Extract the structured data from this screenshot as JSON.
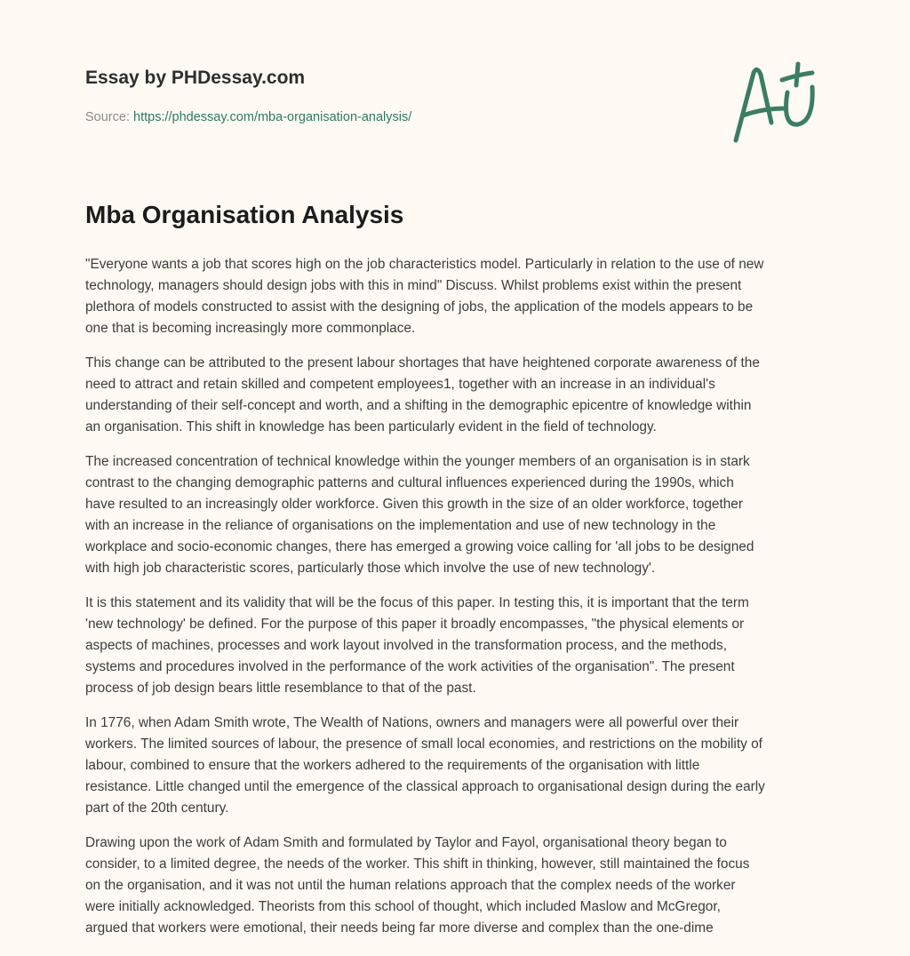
{
  "header": {
    "brand": "Essay by PHDessay.com",
    "source_label": "Source:",
    "source_url": "https://phdessay.com/mba-organisation-analysis/",
    "logo_text": "A+",
    "accent_color": "#3a7d63"
  },
  "title": "Mba Organisation Analysis",
  "paragraphs": [
    [
      "\"Everyone wants a job that scores high on the job characteristics model. Particularly in relation to the use of new",
      "technology, managers should design jobs with this in mind\" Discuss. Whilst problems exist within the present",
      "plethora of models constructed to assist with the designing of jobs, the application of the models appears to be",
      "one that is becoming increasingly more commonplace."
    ],
    [
      "This change can be attributed to the present labour shortages that have heightened corporate awareness of the",
      "need to attract and retain skilled and competent employees1, together with an increase in an individual's",
      "understanding of their self-concept and worth, and a shifting in the demographic epicentre of knowledge within",
      "an organisation. This shift in knowledge has been particularly evident in the field of technology."
    ],
    [
      "The increased concentration of technical knowledge within the younger members of an organisation is in stark",
      "contrast to the changing demographic patterns and cultural influences experienced during the 1990s, which",
      "have resulted to an increasingly older workforce. Given this growth in the size of an older workforce, together",
      "with an increase in the reliance of organisations on the implementation and use of new technology in the",
      "workplace and socio-economic changes, there has emerged a growing voice calling for 'all jobs to be designed",
      "with high job characteristic scores, particularly those which involve the use of new technology'."
    ],
    [
      "It is this statement and its validity that will be the focus of this paper. In testing this, it is important that the term",
      "'new technology' be defined. For the purpose of this paper it broadly encompasses, \"the physical elements or",
      "aspects of machines, processes and work layout involved in the transformation process, and the methods,",
      "systems and procedures involved in the performance of the work activities of the organisation\". The present",
      "process of job design bears little resemblance to that of the past."
    ],
    [
      "In 1776, when Adam Smith wrote, The Wealth of Nations, owners and managers were all powerful over their",
      "workers. The limited sources of labour, the presence of small local economies, and restrictions on the mobility of",
      "labour, combined to ensure that the workers adhered to the requirements of the organisation with little",
      "resistance. Little changed until the emergence of the classical approach to organisational design during the early",
      "part of the 20th century."
    ],
    [
      "Drawing upon the work of Adam Smith and formulated by Taylor and Fayol, organisational theory began to",
      "consider, to a limited degree, the needs of the worker. This shift in thinking, however, still maintained the focus",
      "on the organisation, and it was not until the human relations approach that the complex needs of the worker",
      "were initially acknowledged. Theorists from this school of thought, which included Maslow and McGregor,",
      "argued that workers were emotional, their needs being far more diverse and complex than the one-dime"
    ]
  ]
}
